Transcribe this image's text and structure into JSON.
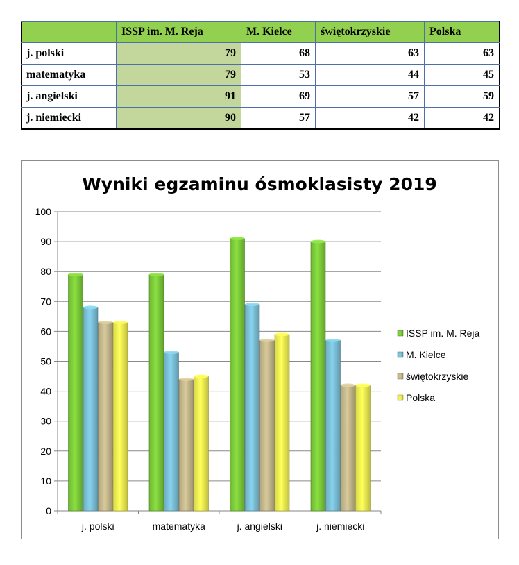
{
  "table": {
    "headers": [
      "",
      "ISSP im. M. Reja",
      "M. Kielce",
      "świętokrzyskie",
      "Polska"
    ],
    "rows": [
      {
        "subject": "j. polski",
        "values": [
          "79",
          "68",
          "63",
          "63"
        ]
      },
      {
        "subject": "matematyka",
        "values": [
          "79",
          "53",
          "44",
          "45"
        ]
      },
      {
        "subject": "j. angielski",
        "values": [
          "91",
          "69",
          "57",
          "59"
        ]
      },
      {
        "subject": "j. niemiecki",
        "values": [
          "90",
          "57",
          "42",
          "42"
        ]
      }
    ],
    "colors": {
      "header_bg": "#92d050",
      "highlight_bg": "#c3d69b"
    }
  },
  "chart_data": {
    "type": "bar",
    "title": "Wyniki egzaminu ósmoklasisty 2019",
    "categories": [
      "j. polski",
      "matematyka",
      "j. angielski",
      "j. niemiecki"
    ],
    "series": [
      {
        "name": "ISSP im. M. Reja",
        "values": [
          79,
          79,
          91,
          90
        ],
        "color": "#7fcf3b"
      },
      {
        "name": "M. Kielce",
        "values": [
          68,
          53,
          69,
          57
        ],
        "color": "#7dc3db"
      },
      {
        "name": "świętokrzyskie",
        "values": [
          63,
          44,
          57,
          42
        ],
        "color": "#c8bb8f"
      },
      {
        "name": "Polska",
        "values": [
          63,
          45,
          59,
          42
        ],
        "color": "#f6f553"
      }
    ],
    "yticks": [
      "0",
      "10",
      "20",
      "30",
      "40",
      "50",
      "60",
      "70",
      "80",
      "90",
      "100"
    ],
    "ylim": [
      0,
      100
    ],
    "grid": true,
    "legend_position": "right",
    "xlabel": "",
    "ylabel": ""
  }
}
